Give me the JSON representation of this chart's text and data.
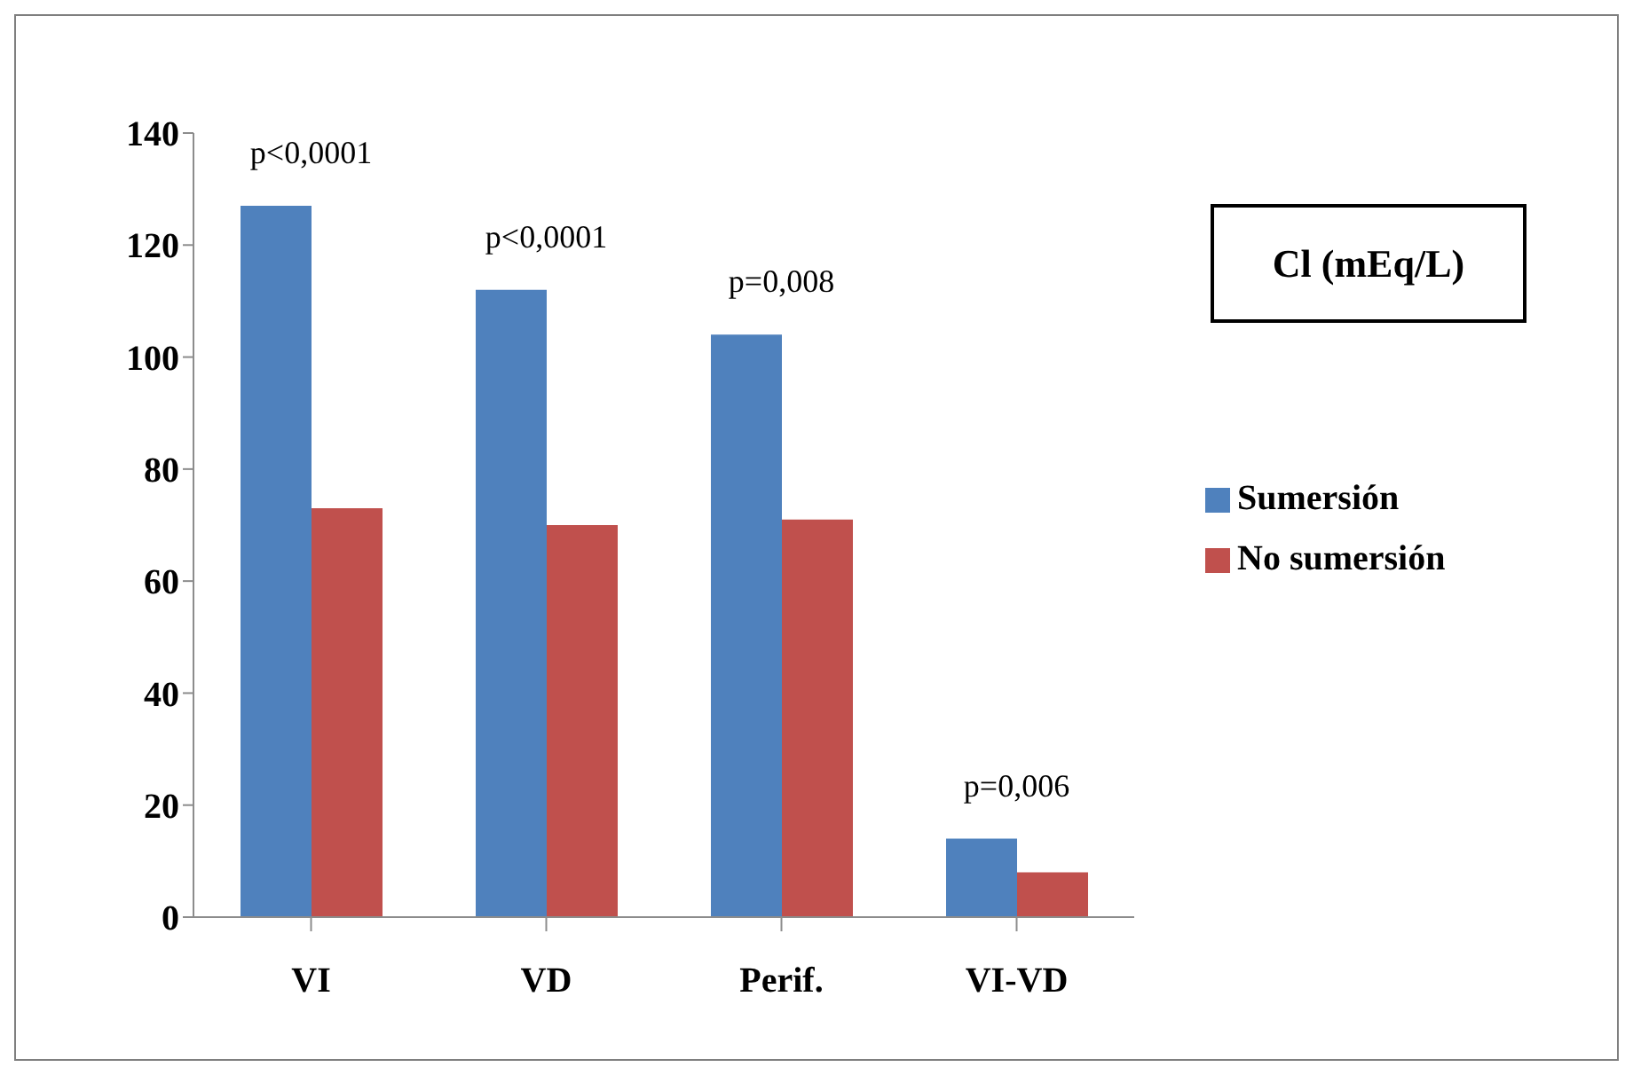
{
  "chart_data": {
    "type": "bar",
    "title": "Cl (mEq/L)",
    "categories": [
      "VI",
      "VD",
      "Perif.",
      "VI-VD"
    ],
    "series": [
      {
        "name": "Sumersión",
        "color": "#4f81bd",
        "values": [
          127,
          112,
          104,
          14
        ]
      },
      {
        "name": "No sumersión",
        "color": "#c0504d",
        "values": [
          73,
          70,
          71,
          8
        ]
      }
    ],
    "ylim": [
      0,
      140
    ],
    "yticks": [
      0,
      20,
      40,
      60,
      80,
      100,
      120,
      140
    ],
    "grid": false,
    "legend": "right",
    "annotations": [
      "p<0,0001",
      "p<0,0001",
      "p=0,008",
      "p=0,006"
    ]
  }
}
